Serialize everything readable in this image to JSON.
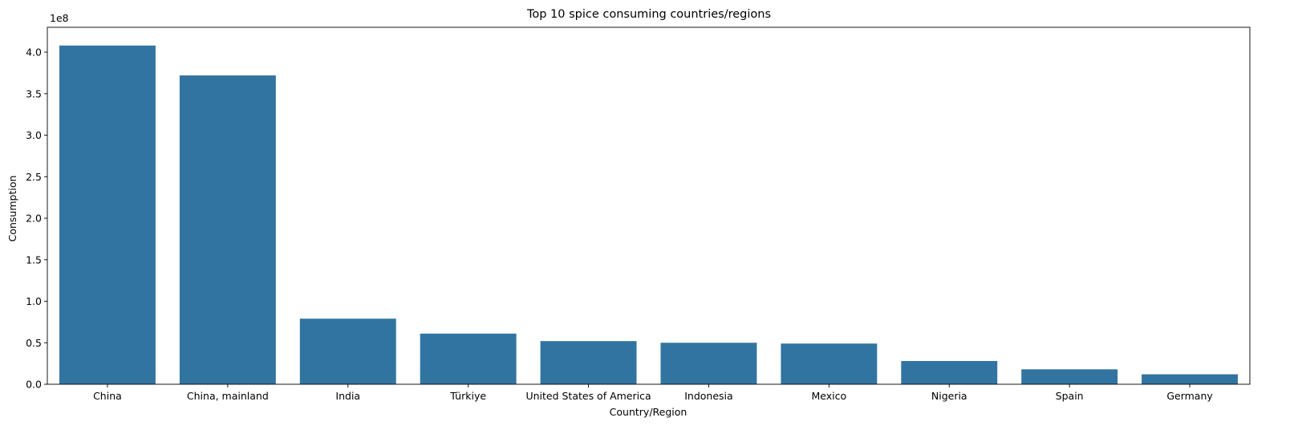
{
  "chart_data": {
    "type": "bar",
    "title": "Top 10 spice consuming countries/regions",
    "xlabel": "Country/Region",
    "ylabel": "Consumption",
    "y_offset_label": "1e8",
    "y_scale": 100000000,
    "ylim": [
      0,
      430000000
    ],
    "yticks": [
      0,
      50000000,
      100000000,
      150000000,
      200000000,
      250000000,
      300000000,
      350000000,
      400000000
    ],
    "ytick_labels": [
      "0.0",
      "0.5",
      "1.0",
      "1.5",
      "2.0",
      "2.5",
      "3.0",
      "3.5",
      "4.0"
    ],
    "categories": [
      "China",
      "China, mainland",
      "India",
      "Türkiye",
      "United States of America",
      "Indonesia",
      "Mexico",
      "Nigeria",
      "Spain",
      "Germany"
    ],
    "values": [
      408000000,
      372000000,
      79000000,
      61000000,
      52000000,
      50000000,
      49000000,
      28000000,
      18000000,
      12000000
    ],
    "bar_color": "#3274a1",
    "grid": false,
    "legend": "none"
  }
}
